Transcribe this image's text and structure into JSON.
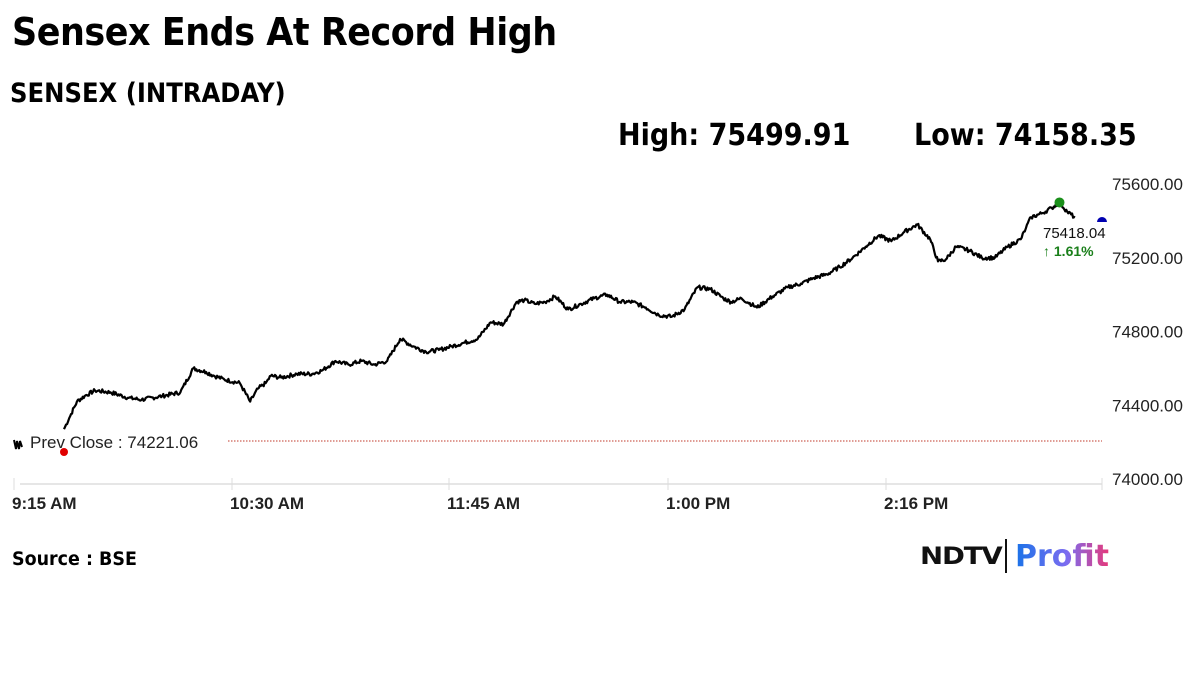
{
  "header": {
    "title": "Sensex Ends At Record High",
    "subtitle": "SENSEX (INTRADAY)",
    "high_label": "High: 75499.91",
    "low_label": "Low: 74158.35"
  },
  "footer": {
    "source": "Source : BSE",
    "logo_left": "NDTV",
    "logo_right": "Profit"
  },
  "colors": {
    "line": "#000000",
    "prev_close_line": "#c0392b",
    "prev_close_dot": "#e00000",
    "high_dot": "#1a8f1a",
    "last_dot": "#0000b0",
    "change_positive": "#1a7f1a",
    "gridline": "#dddddd"
  },
  "chart_data": {
    "type": "line",
    "title": "SENSEX (INTRADAY)",
    "xlabel": "",
    "ylabel": "",
    "ylim": [
      74000,
      75600
    ],
    "y_ticks": [
      "75600.00",
      "75200.00",
      "74800.00",
      "74400.00",
      "74000.00"
    ],
    "x_ticks": [
      "9:15 AM",
      "10:30 AM",
      "11:45 AM",
      "1:00 PM",
      "2:16 PM"
    ],
    "prev_close": 74221.06,
    "prev_close_label": "Prev Close : 74221.06",
    "high": 75499.91,
    "low": 74158.35,
    "last_value": "75418.04",
    "change_pct": "↑ 1.61%",
    "legend": [],
    "grid": false,
    "series": [
      {
        "name": "SENSEX",
        "x_minutes_from_915": [
          0,
          2,
          5,
          8,
          12,
          18,
          25,
          30,
          38,
          45,
          50,
          55,
          58,
          62,
          68,
          72,
          75,
          78,
          80,
          84,
          90,
          96,
          100,
          105,
          110,
          115,
          120,
          125,
          130,
          135,
          140,
          145,
          150,
          155,
          160,
          165,
          170,
          175,
          178,
          182,
          186,
          190,
          195,
          200,
          205,
          210,
          215,
          220,
          225,
          230,
          235,
          240,
          245,
          250,
          255,
          258,
          262,
          268,
          274,
          280,
          285,
          290,
          295,
          300,
          305,
          310,
          315,
          320,
          325,
          330,
          335,
          338,
          341,
          345,
          350,
          355,
          360,
          365,
          370,
          372,
          374,
          378
        ],
        "values": [
          74270,
          74330,
          74420,
          74450,
          74480,
          74470,
          74440,
          74430,
          74450,
          74470,
          74600,
          74580,
          74560,
          74540,
          74520,
          74420,
          74490,
          74520,
          74560,
          74550,
          74570,
          74570,
          74590,
          74640,
          74620,
          74640,
          74620,
          74640,
          74760,
          74720,
          74690,
          74700,
          74720,
          74740,
          74760,
          74850,
          74840,
          74960,
          74970,
          74950,
          74960,
          74990,
          74920,
          74950,
          74980,
          75000,
          74960,
          74960,
          74930,
          74890,
          74880,
          74920,
          75040,
          75030,
          74980,
          74960,
          74980,
          74930,
          74990,
          75040,
          75060,
          75090,
          75110,
          75150,
          75200,
          75260,
          75320,
          75290,
          75340,
          75380,
          75300,
          75180,
          75190,
          75260,
          75240,
          75200,
          75200,
          75260,
          75300,
          75360,
          75420,
          75440
        ]
      }
    ],
    "tail": {
      "x_minutes_from_915": [
        378,
        382,
        385,
        388,
        391
      ],
      "values": [
        75440,
        75470,
        75499.91,
        75450,
        75418.04
      ]
    }
  }
}
